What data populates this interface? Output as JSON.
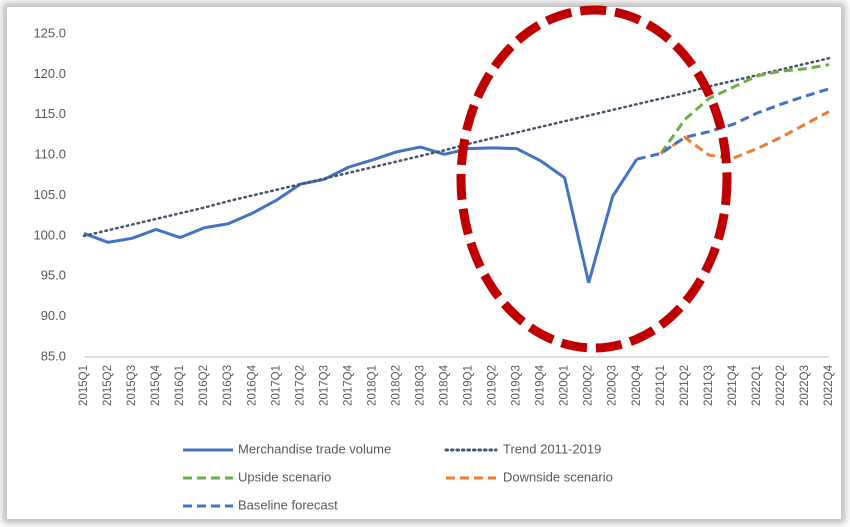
{
  "chart_data": {
    "type": "line",
    "categories": [
      "2015Q1",
      "2015Q2",
      "2015Q3",
      "2015Q4",
      "2016Q1",
      "2016Q2",
      "2016Q3",
      "2016Q4",
      "2017Q1",
      "2017Q2",
      "2017Q3",
      "2017Q4",
      "2018Q1",
      "2018Q2",
      "2018Q3",
      "2018Q4",
      "2019Q1",
      "2019Q2",
      "2019Q3",
      "2019Q4",
      "2020Q1",
      "2020Q2",
      "2020Q3",
      "2020Q4",
      "2021Q1",
      "2021Q2",
      "2021Q3",
      "2021Q4",
      "2022Q1",
      "2022Q2",
      "2022Q3",
      "2022Q4"
    ],
    "series": [
      {
        "name": "Merchandise trade volume",
        "color": "#4472c4",
        "dash": "solid",
        "values": [
          100.3,
          99.2,
          99.7,
          100.8,
          99.8,
          101.0,
          101.5,
          102.8,
          104.4,
          106.4,
          107.0,
          108.5,
          109.4,
          110.4,
          111.0,
          110.1,
          110.8,
          110.9,
          110.8,
          109.3,
          107.2,
          94.2,
          104.9,
          109.5,
          null,
          null,
          null,
          null,
          null,
          null,
          null,
          null
        ]
      },
      {
        "name": "Trend 2011-2019",
        "color": "#44546a",
        "dash": "dotted",
        "values": [
          100.0,
          100.7,
          101.4,
          102.1,
          102.8,
          103.5,
          104.3,
          105.0,
          105.7,
          106.4,
          107.1,
          107.8,
          108.5,
          109.2,
          109.9,
          110.6,
          111.4,
          112.1,
          112.8,
          113.5,
          114.2,
          114.9,
          115.6,
          116.3,
          117.0,
          117.7,
          118.5,
          119.2,
          119.9,
          120.6,
          121.3,
          122.0
        ]
      },
      {
        "name": "Upside scenario",
        "color": "#70ad47",
        "dash": "dashed",
        "values": [
          null,
          null,
          null,
          null,
          null,
          null,
          null,
          null,
          null,
          null,
          null,
          null,
          null,
          null,
          null,
          null,
          null,
          null,
          null,
          null,
          null,
          null,
          null,
          null,
          110.2,
          114.4,
          117.0,
          118.4,
          119.8,
          120.4,
          120.7,
          121.2
        ]
      },
      {
        "name": "Downside scenario",
        "color": "#ed7d31",
        "dash": "dashed",
        "values": [
          null,
          null,
          null,
          null,
          null,
          null,
          null,
          null,
          null,
          null,
          null,
          null,
          null,
          null,
          null,
          null,
          null,
          null,
          null,
          null,
          null,
          null,
          null,
          null,
          110.2,
          112.2,
          110.0,
          109.6,
          110.8,
          112.2,
          113.8,
          115.4
        ]
      },
      {
        "name": "Baseline forecast",
        "color": "#4472c4",
        "dash": "dashed",
        "values": [
          null,
          null,
          null,
          null,
          null,
          null,
          null,
          null,
          null,
          null,
          null,
          null,
          null,
          null,
          null,
          null,
          null,
          null,
          null,
          null,
          null,
          null,
          null,
          109.5,
          110.2,
          112.2,
          112.9,
          113.8,
          115.2,
          116.3,
          117.3,
          118.2
        ]
      }
    ],
    "ylim": [
      85,
      125
    ],
    "yticks": [
      {
        "value": 85,
        "label": "85.0"
      },
      {
        "value": 90,
        "label": "90.0"
      },
      {
        "value": 95,
        "label": "95.0"
      },
      {
        "value": 100,
        "label": "100.0"
      },
      {
        "value": 105,
        "label": "105.0"
      },
      {
        "value": 110,
        "label": "110.0"
      },
      {
        "value": 115,
        "label": "115.0"
      },
      {
        "value": 120,
        "label": "120.0"
      },
      {
        "value": 125,
        "label": "125.0"
      }
    ],
    "grid": false
  }
}
